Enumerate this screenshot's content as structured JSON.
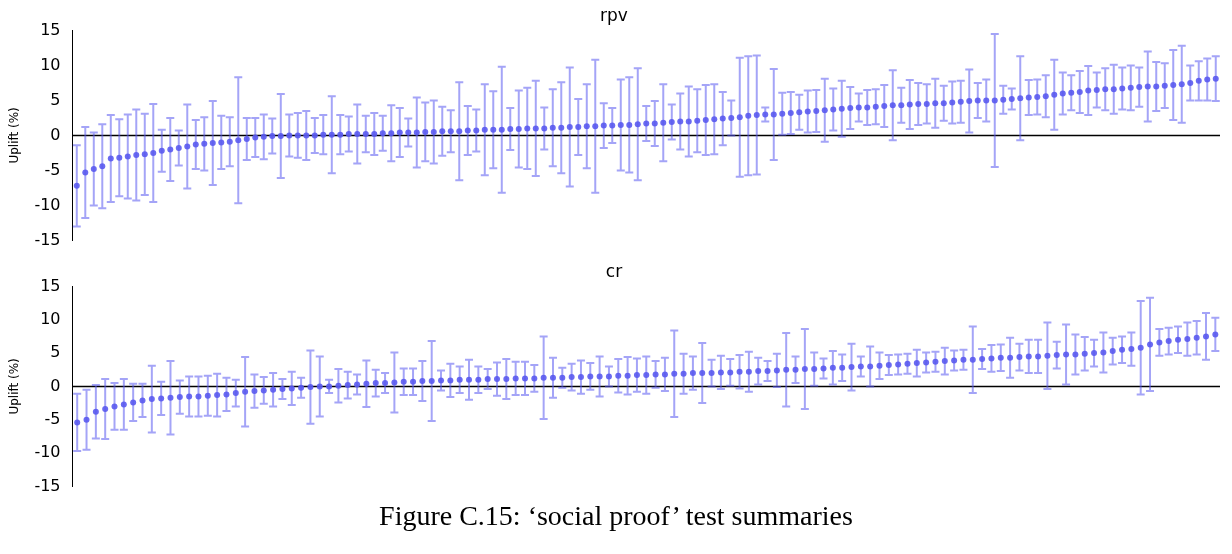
{
  "caption": "Figure C.15: ‘social proof’ test summaries",
  "chart_data": [
    {
      "type": "scatter",
      "title": "rpv",
      "y_label": "Uplift (%)",
      "color": "#5a5af0",
      "ylim": [
        -15,
        15
      ],
      "yticks": [
        -15,
        -10,
        -5,
        0,
        5,
        10,
        15
      ],
      "grid": false,
      "tick_labels": "y",
      "hline": 0,
      "values": [
        -7.2,
        -5.3,
        -4.8,
        -4.4,
        -3.3,
        -3.2,
        -3.0,
        -2.8,
        -2.7,
        -2.5,
        -2.2,
        -2.0,
        -1.8,
        -1.6,
        -1.3,
        -1.2,
        -1.1,
        -1.0,
        -0.9,
        -0.7,
        -0.5,
        -0.3,
        -0.2,
        -0.1,
        -0.1,
        0.0,
        0.0,
        0.0,
        0.0,
        0.1,
        0.1,
        0.1,
        0.2,
        0.2,
        0.2,
        0.2,
        0.3,
        0.3,
        0.4,
        0.4,
        0.4,
        0.5,
        0.5,
        0.6,
        0.6,
        0.6,
        0.7,
        0.7,
        0.8,
        0.8,
        0.8,
        0.9,
        0.9,
        1.0,
        1.0,
        1.0,
        1.1,
        1.1,
        1.2,
        1.2,
        1.3,
        1.3,
        1.4,
        1.4,
        1.5,
        1.5,
        1.6,
        1.7,
        1.7,
        1.8,
        1.9,
        2.0,
        2.0,
        2.1,
        2.2,
        2.3,
        2.4,
        2.5,
        2.6,
        2.8,
        2.9,
        3.0,
        3.0,
        3.1,
        3.2,
        3.3,
        3.4,
        3.5,
        3.6,
        3.7,
        3.8,
        3.9,
        4.0,
        4.0,
        4.1,
        4.2,
        4.3,
        4.3,
        4.4,
        4.5,
        4.5,
        4.6,
        4.6,
        4.7,
        4.8,
        4.9,
        5.0,
        5.0,
        5.0,
        5.1,
        5.2,
        5.3,
        5.4,
        5.5,
        5.6,
        5.8,
        6.0,
        6.1,
        6.2,
        6.4,
        6.5,
        6.6,
        6.6,
        6.7,
        6.8,
        6.9,
        7.0,
        7.0,
        7.1,
        7.2,
        7.3,
        7.5,
        7.8,
        8.0,
        8.1
      ],
      "errors": [
        5.8,
        6.5,
        5.2,
        6.0,
        6.2,
        5.5,
        6.0,
        6.5,
        5.8,
        7.0,
        3.0,
        4.5,
        2.5,
        6.0,
        3.5,
        3.8,
        6.0,
        3.8,
        3.5,
        9.0,
        3.0,
        2.8,
        3.2,
        2.5,
        6.0,
        3.0,
        3.2,
        3.5,
        2.5,
        2.8,
        5.5,
        2.8,
        2.5,
        4.2,
        2.6,
        3.0,
        2.5,
        4.0,
        3.5,
        2.0,
        5.0,
        4.2,
        4.5,
        3.5,
        3.0,
        7.0,
        3.5,
        3.0,
        6.5,
        5.5,
        9.0,
        3.0,
        5.5,
        5.8,
        6.8,
        3.0,
        5.5,
        6.5,
        8.5,
        4.0,
        6.0,
        9.5,
        3.2,
        2.5,
        6.5,
        6.8,
        8.0,
        2.5,
        3.2,
        5.5,
        2.5,
        4.0,
        5.0,
        4.5,
        5.0,
        5.0,
        3.8,
        2.5,
        8.5,
        8.5,
        8.5,
        1.0,
        6.5,
        3.0,
        3.0,
        2.5,
        3.0,
        3.0,
        4.5,
        3.0,
        4.0,
        3.0,
        2.0,
        2.5,
        2.5,
        3.0,
        5.0,
        2.5,
        3.5,
        3.0,
        2.8,
        3.5,
        2.5,
        3.0,
        3.0,
        4.5,
        2.5,
        3.0,
        9.5,
        2.0,
        1.5,
        6.0,
        2.5,
        2.5,
        3.0,
        5.0,
        3.0,
        2.5,
        3.0,
        3.5,
        2.5,
        3.0,
        3.5,
        3.0,
        3.2,
        2.8,
        5.0,
        3.5,
        3.2,
        5.0,
        5.5,
        2.5,
        2.8,
        3.0,
        3.2
      ]
    },
    {
      "type": "scatter",
      "title": "cr",
      "y_label": "Uplift (%)",
      "color": "#5a5af0",
      "ylim": [
        -15,
        15
      ],
      "yticks": [
        -15,
        -10,
        -5,
        0,
        5,
        10,
        15
      ],
      "grid": false,
      "tick_labels": "y",
      "hline": 0,
      "values": [
        -5.4,
        -5.0,
        -3.8,
        -3.4,
        -3.0,
        -2.7,
        -2.4,
        -2.1,
        -1.9,
        -1.8,
        -1.7,
        -1.6,
        -1.5,
        -1.5,
        -1.4,
        -1.3,
        -1.2,
        -1.0,
        -0.8,
        -0.7,
        -0.6,
        -0.5,
        -0.4,
        -0.3,
        -0.2,
        -0.1,
        0.0,
        0.0,
        0.1,
        0.2,
        0.3,
        0.4,
        0.5,
        0.5,
        0.6,
        0.7,
        0.7,
        0.8,
        0.8,
        0.9,
        0.9,
        1.0,
        1.0,
        1.0,
        1.1,
        1.1,
        1.1,
        1.2,
        1.2,
        1.2,
        1.3,
        1.3,
        1.3,
        1.4,
        1.4,
        1.5,
        1.5,
        1.5,
        1.6,
        1.6,
        1.7,
        1.7,
        1.8,
        1.8,
        1.9,
        1.9,
        2.0,
        2.0,
        2.0,
        2.1,
        2.1,
        2.2,
        2.2,
        2.3,
        2.3,
        2.4,
        2.5,
        2.5,
        2.6,
        2.6,
        2.7,
        2.8,
        2.8,
        2.9,
        3.0,
        3.0,
        3.1,
        3.2,
        3.3,
        3.4,
        3.5,
        3.6,
        3.7,
        3.8,
        3.9,
        4.0,
        4.0,
        4.1,
        4.2,
        4.3,
        4.3,
        4.4,
        4.5,
        4.5,
        4.6,
        4.7,
        4.8,
        4.8,
        4.9,
        5.0,
        5.1,
        5.3,
        5.5,
        5.6,
        5.8,
        6.3,
        6.6,
        6.8,
        7.0,
        7.1,
        7.3,
        7.5,
        7.8
      ],
      "errors": [
        4.3,
        4.5,
        4.0,
        4.5,
        3.5,
        3.8,
        2.8,
        2.5,
        5.0,
        2.5,
        5.5,
        2.5,
        3.0,
        3.0,
        3.0,
        3.2,
        2.5,
        2.0,
        5.2,
        2.5,
        2.0,
        2.5,
        1.5,
        2.5,
        1.5,
        5.5,
        4.5,
        1.0,
        2.5,
        2.0,
        1.5,
        3.5,
        2.0,
        1.5,
        4.5,
        2.0,
        2.0,
        3.0,
        6.0,
        1.5,
        2.5,
        2.0,
        3.0,
        2.0,
        1.5,
        2.5,
        3.0,
        2.5,
        2.5,
        2.0,
        6.2,
        3.0,
        1.5,
        2.0,
        2.5,
        2.0,
        3.0,
        1.5,
        2.5,
        2.8,
        2.5,
        2.8,
        2.0,
        2.5,
        6.5,
        3.0,
        2.5,
        4.5,
        2.0,
        2.5,
        2.0,
        2.5,
        3.0,
        2.0,
        1.5,
        2.5,
        5.5,
        2.0,
        6.0,
        2.5,
        1.5,
        2.5,
        2.0,
        3.5,
        1.5,
        3.0,
        2.0,
        1.5,
        1.5,
        1.5,
        2.0,
        1.5,
        1.5,
        2.0,
        1.5,
        1.5,
        5.0,
        1.5,
        2.0,
        2.0,
        3.0,
        2.0,
        2.5,
        2.5,
        5.0,
        2.0,
        4.5,
        3.0,
        2.5,
        2.0,
        3.0,
        2.0,
        2.0,
        2.5,
        7.0,
        7.0,
        2.0,
        2.0,
        2.0,
        2.5,
        2.5,
        3.5,
        2.5
      ]
    }
  ]
}
